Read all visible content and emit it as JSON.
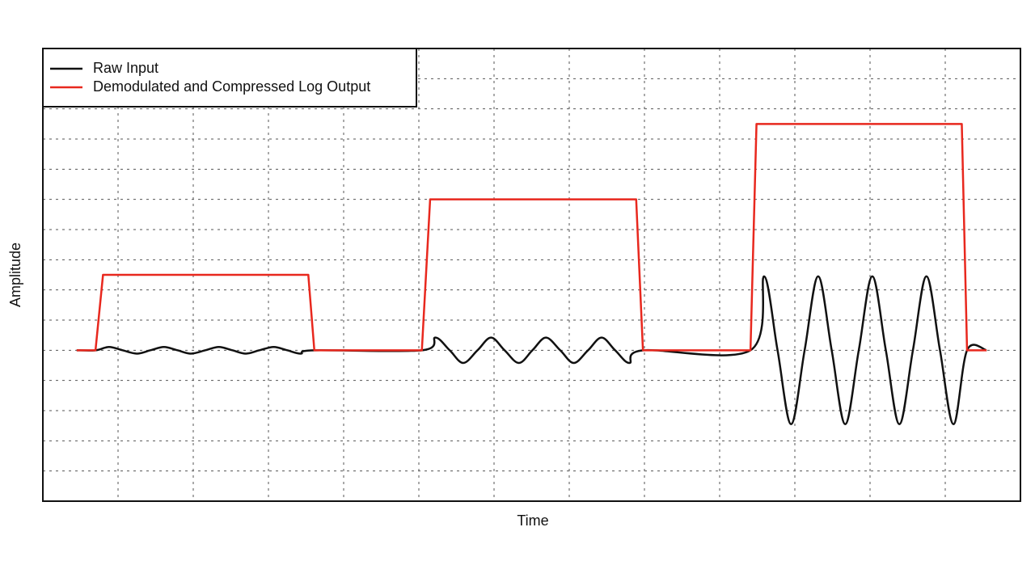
{
  "chart_data": {
    "type": "line",
    "xlabel": "Time",
    "ylabel": "Amplitude",
    "xlim": [
      0,
      13
    ],
    "ylim": [
      0,
      15
    ],
    "xticks": [
      1,
      2,
      3,
      4,
      5,
      6,
      7,
      8,
      9,
      10,
      11,
      12
    ],
    "yticks": [
      1,
      2,
      3,
      4,
      5,
      6,
      7,
      8,
      9,
      10,
      11,
      12,
      13,
      14
    ],
    "grid": true,
    "legend": "upper left",
    "series": [
      {
        "name": "Raw Input",
        "color": "#111111",
        "smooth": true,
        "x": [
          0.45,
          0.7,
          0.88,
          1.06,
          1.25,
          1.43,
          1.61,
          1.79,
          1.97,
          2.16,
          2.34,
          2.52,
          2.7,
          2.88,
          3.07,
          3.25,
          3.43,
          3.61,
          5.04,
          5.22,
          5.41,
          5.59,
          5.78,
          5.96,
          6.14,
          6.33,
          6.51,
          6.69,
          6.88,
          7.06,
          7.25,
          7.43,
          7.61,
          7.8,
          7.98,
          9.41,
          9.59,
          9.77,
          9.95,
          10.13,
          10.31,
          10.49,
          10.67,
          10.85,
          11.03,
          11.21,
          11.39,
          11.57,
          11.75,
          11.93,
          12.11,
          12.29,
          12.55
        ],
        "values": [
          5,
          5,
          5.11,
          5,
          4.89,
          5,
          5.11,
          5,
          4.89,
          5,
          5.11,
          5,
          4.89,
          5,
          5.11,
          5,
          4.89,
          5,
          5,
          5.42,
          5,
          4.58,
          5,
          5.42,
          5,
          4.58,
          5,
          5.42,
          5,
          4.58,
          5,
          5.42,
          5,
          4.58,
          5,
          5,
          7.45,
          5,
          2.55,
          5,
          7.45,
          5,
          2.55,
          5,
          7.45,
          5,
          2.55,
          5,
          7.45,
          5,
          2.55,
          5,
          5
        ]
      },
      {
        "name": "Demodulated and Compressed Log Output",
        "color": "#e8281e",
        "smooth": false,
        "x": [
          0.45,
          0.7,
          0.8,
          3.53,
          3.61,
          5.04,
          5.15,
          7.89,
          7.98,
          9.41,
          9.49,
          12.22,
          12.29,
          12.55
        ],
        "values": [
          5,
          5,
          7.5,
          7.5,
          5,
          5,
          10,
          10,
          5,
          5,
          12.5,
          12.5,
          5,
          5
        ]
      }
    ]
  }
}
